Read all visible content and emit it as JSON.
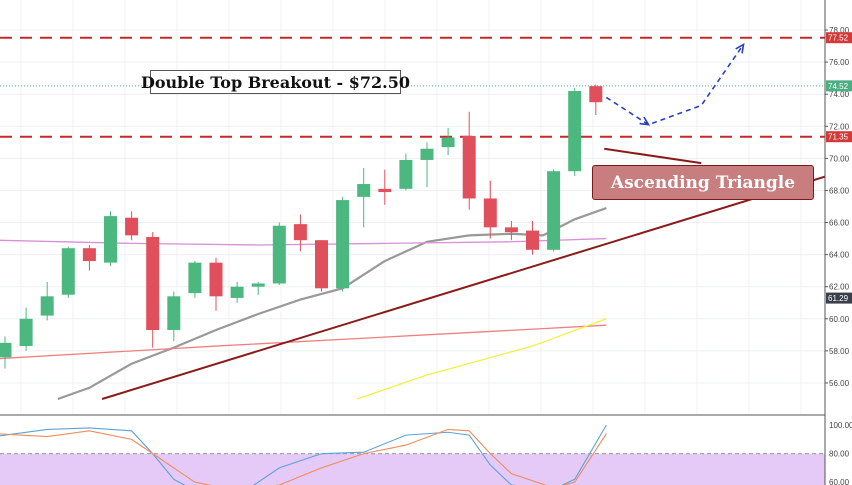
{
  "annotations": {
    "breakout_label": "Double Top Breakout - $72.50",
    "pattern_label": "Ascending Triangle"
  },
  "chart_data": [
    {
      "type": "candlestick",
      "title": "",
      "ylim": [
        55,
        78.5
      ],
      "y_ticks": [
        "56.00",
        "58.00",
        "60.00",
        "62.00",
        "64.00",
        "66.00",
        "68.00",
        "70.00",
        "72.00",
        "74.00",
        "76.00",
        "78.00"
      ],
      "price_badges": [
        {
          "label": "77.52",
          "value": 77.52,
          "color": "#d23a3a"
        },
        {
          "label": "74.52",
          "value": 74.52,
          "color": "#4caf84"
        },
        {
          "label": "71.35",
          "value": 71.35,
          "color": "#d23a3a"
        },
        {
          "label": "61.29",
          "value": 61.29,
          "color": "#3a3f4a"
        }
      ],
      "candles": [
        {
          "o": 57.6,
          "h": 58.9,
          "l": 56.9,
          "c": 58.5
        },
        {
          "o": 58.3,
          "h": 60.7,
          "l": 58.0,
          "c": 60.0
        },
        {
          "o": 60.2,
          "h": 62.3,
          "l": 59.9,
          "c": 61.4
        },
        {
          "o": 61.5,
          "h": 64.5,
          "l": 61.3,
          "c": 64.4
        },
        {
          "o": 64.4,
          "h": 64.6,
          "l": 63.0,
          "c": 63.6
        },
        {
          "o": 63.5,
          "h": 66.7,
          "l": 63.3,
          "c": 66.4
        },
        {
          "o": 66.3,
          "h": 66.7,
          "l": 64.9,
          "c": 65.2
        },
        {
          "o": 65.1,
          "h": 65.4,
          "l": 58.2,
          "c": 59.3
        },
        {
          "o": 59.3,
          "h": 61.7,
          "l": 58.6,
          "c": 61.4
        },
        {
          "o": 61.6,
          "h": 63.6,
          "l": 61.3,
          "c": 63.5
        },
        {
          "o": 63.5,
          "h": 63.8,
          "l": 60.5,
          "c": 61.4
        },
        {
          "o": 61.3,
          "h": 62.3,
          "l": 61.0,
          "c": 62.0
        },
        {
          "o": 62.0,
          "h": 62.3,
          "l": 61.5,
          "c": 62.2
        },
        {
          "o": 62.2,
          "h": 66.0,
          "l": 62.1,
          "c": 65.8
        },
        {
          "o": 65.9,
          "h": 66.5,
          "l": 64.2,
          "c": 64.9
        },
        {
          "o": 64.9,
          "h": 64.9,
          "l": 61.7,
          "c": 61.9
        },
        {
          "o": 61.9,
          "h": 67.6,
          "l": 61.7,
          "c": 67.4
        },
        {
          "o": 67.6,
          "h": 69.4,
          "l": 65.7,
          "c": 68.4
        },
        {
          "o": 68.1,
          "h": 69.3,
          "l": 67.1,
          "c": 67.9
        },
        {
          "o": 68.1,
          "h": 70.3,
          "l": 68.0,
          "c": 69.9
        },
        {
          "o": 69.9,
          "h": 71.0,
          "l": 68.2,
          "c": 70.6
        },
        {
          "o": 70.7,
          "h": 71.9,
          "l": 70.2,
          "c": 71.3
        },
        {
          "o": 71.4,
          "h": 72.9,
          "l": 66.8,
          "c": 67.5
        },
        {
          "o": 67.5,
          "h": 68.6,
          "l": 65.0,
          "c": 65.7
        },
        {
          "o": 65.7,
          "h": 66.1,
          "l": 64.9,
          "c": 65.4
        },
        {
          "o": 65.5,
          "h": 66.1,
          "l": 64.0,
          "c": 64.3
        },
        {
          "o": 64.3,
          "h": 69.3,
          "l": 64.2,
          "c": 69.2
        },
        {
          "o": 69.2,
          "h": 74.4,
          "l": 68.9,
          "c": 74.2
        },
        {
          "o": 74.5,
          "h": 74.6,
          "l": 72.7,
          "c": 73.5
        }
      ],
      "horizontal_levels": [
        {
          "value": 77.52,
          "style": "dashed",
          "color": "#c62828"
        },
        {
          "value": 71.35,
          "style": "dashed",
          "color": "#c62828"
        },
        {
          "value": 74.52,
          "style": "dotted",
          "color": "#4caf84"
        }
      ],
      "moving_averages": [
        {
          "color": "#999999",
          "points": [
            [
              2.5,
              55.0
            ],
            [
              4,
              55.7
            ],
            [
              6,
              57.2
            ],
            [
              8,
              58.2
            ],
            [
              10,
              59.3
            ],
            [
              12,
              60.3
            ],
            [
              14,
              61.2
            ],
            [
              16,
              61.9
            ],
            [
              18,
              63.6
            ],
            [
              20,
              64.8
            ],
            [
              22,
              65.2
            ],
            [
              24,
              65.3
            ],
            [
              25.5,
              65.2
            ],
            [
              27,
              66.2
            ],
            [
              28.5,
              66.9
            ]
          ]
        },
        {
          "color": "#d890d8",
          "points": [
            [
              -0.5,
              64.9
            ],
            [
              6,
              64.7
            ],
            [
              12,
              64.6
            ],
            [
              18,
              64.7
            ],
            [
              24,
              64.8
            ],
            [
              28.5,
              65.0
            ]
          ]
        },
        {
          "color": "#f08080",
          "points": [
            [
              -0.5,
              57.5
            ],
            [
              10,
              58.3
            ],
            [
              20,
              59.0
            ],
            [
              28.5,
              59.6
            ]
          ]
        },
        {
          "color": "#f2f040",
          "points": [
            [
              16.7,
              55.0
            ],
            [
              20,
              56.5
            ],
            [
              25,
              58.3
            ],
            [
              28.5,
              60.0
            ]
          ]
        }
      ],
      "trendlines": [
        {
          "color": "#8b1a1a",
          "points": [
            [
              4.6,
              55.0
            ],
            [
              39.2,
              69.0
            ]
          ]
        },
        {
          "color": "#8b1a1a",
          "points": [
            [
              28.4,
              70.6
            ],
            [
              33.0,
              69.7
            ]
          ]
        }
      ],
      "projection": {
        "color": "#2b3fbf",
        "points": [
          [
            28.5,
            73.8
          ],
          [
            30.5,
            72.1
          ],
          [
            33.0,
            73.3
          ],
          [
            35.0,
            77.1
          ]
        ]
      }
    },
    {
      "type": "line",
      "title": "",
      "ylim": [
        58,
        105
      ],
      "y_ticks": [
        "100.00",
        "80.00",
        "60.00"
      ],
      "reference_level": 80,
      "shade_band": [
        0,
        80
      ],
      "series": [
        {
          "color": "#5ba3d9",
          "values": [
            [
              -0.5,
              92
            ],
            [
              2,
              97
            ],
            [
              4,
              98
            ],
            [
              6,
              96
            ],
            [
              7,
              80
            ],
            [
              8,
              62
            ],
            [
              9,
              54
            ],
            [
              11,
              50
            ],
            [
              13,
              70
            ],
            [
              15,
              80
            ],
            [
              17,
              81
            ],
            [
              19,
              93
            ],
            [
              21,
              95
            ],
            [
              22,
              93
            ],
            [
              23,
              72
            ],
            [
              24,
              58
            ],
            [
              26,
              55
            ],
            [
              27,
              62
            ],
            [
              28.5,
              100
            ]
          ]
        },
        {
          "color": "#f08c5a",
          "values": [
            [
              -0.5,
              94
            ],
            [
              2,
              92
            ],
            [
              4,
              96
            ],
            [
              6,
              90
            ],
            [
              7,
              80
            ],
            [
              8,
              70
            ],
            [
              9,
              60
            ],
            [
              11,
              54
            ],
            [
              13,
              58
            ],
            [
              15,
              70
            ],
            [
              17,
              80
            ],
            [
              19,
              86
            ],
            [
              21,
              97
            ],
            [
              22,
              96
            ],
            [
              23,
              80
            ],
            [
              24,
              66
            ],
            [
              26,
              56
            ],
            [
              27,
              60
            ],
            [
              28.5,
              94
            ]
          ]
        }
      ]
    }
  ]
}
